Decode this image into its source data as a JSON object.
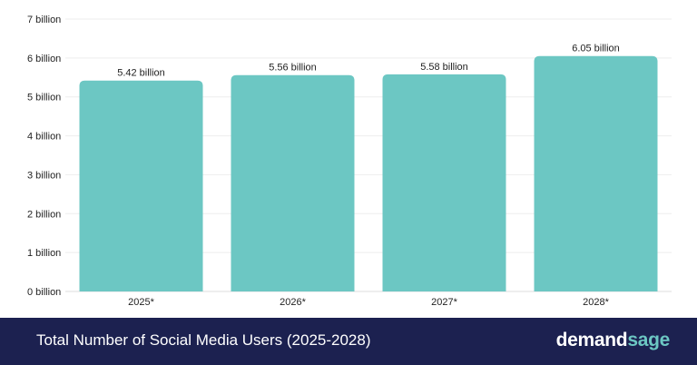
{
  "footer": {
    "title": "Total Number of Social Media Users (2025-2028)",
    "brand_part1": "demand",
    "brand_part2": "sage"
  },
  "colors": {
    "bar": "#6cc7c3",
    "footer_bg": "#1c2150",
    "brand_accent": "#6cc7c3"
  },
  "chart_data": {
    "type": "bar",
    "categories": [
      "2025*",
      "2026*",
      "2027*",
      "2028*"
    ],
    "values": [
      5.42,
      5.56,
      5.58,
      6.05
    ],
    "data_labels": [
      "5.42 billion",
      "5.56 billion",
      "5.58 billion",
      "6.05 billion"
    ],
    "y_ticks": [
      0,
      1,
      2,
      3,
      4,
      5,
      6,
      7
    ],
    "y_tick_labels": [
      "0 billion",
      "1 billion",
      "2 billion",
      "3 billion",
      "4 billion",
      "5 billion",
      "6 billion",
      "7 billion"
    ],
    "ylim": [
      0,
      7
    ],
    "grid": true,
    "title": "",
    "xlabel": "",
    "ylabel": ""
  }
}
